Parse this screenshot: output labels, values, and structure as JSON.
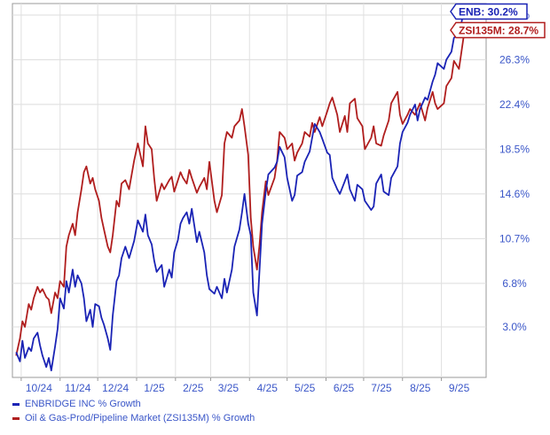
{
  "chart_data": {
    "type": "line",
    "y_unit": "%",
    "x_tick_labels": [
      "10/24",
      "11/24",
      "12/24",
      "1/25",
      "2/25",
      "3/25",
      "4/25",
      "5/25",
      "6/25",
      "7/25",
      "8/25",
      "9/25"
    ],
    "y_tick_labels": [
      "3.0%",
      "6.8%",
      "10.7%",
      "14.6%",
      "18.5%",
      "22.4%",
      "26.3%",
      "30.2%"
    ],
    "y_ticks": [
      3.0,
      6.8,
      10.7,
      14.6,
      18.5,
      22.4,
      26.3,
      30.2
    ],
    "ylim": [
      -1.4,
      31.2
    ],
    "grid": true,
    "legend_position": "bottom-left",
    "end_labels": [
      {
        "series": 0,
        "text": "ENB: 30.2%"
      },
      {
        "series": 1,
        "text": "ZSI135M: 28.7%"
      }
    ],
    "series": [
      {
        "name": "ENBRIDGE INC % Growth",
        "color": "#1a23b5",
        "points": [
          [
            "2024-09-27",
            0.8
          ],
          [
            "2024-09-30",
            0.0
          ],
          [
            "2024-10-02",
            1.8
          ],
          [
            "2024-10-04",
            0.3
          ],
          [
            "2024-10-07",
            1.2
          ],
          [
            "2024-10-09",
            0.9
          ],
          [
            "2024-10-11",
            2.0
          ],
          [
            "2024-10-14",
            2.5
          ],
          [
            "2024-10-16",
            1.4
          ],
          [
            "2024-10-18",
            0.5
          ],
          [
            "2024-10-21",
            -0.5
          ],
          [
            "2024-10-23",
            0.3
          ],
          [
            "2024-10-25",
            -0.8
          ],
          [
            "2024-10-28",
            1.3
          ],
          [
            "2024-10-30",
            2.8
          ],
          [
            "2024-11-01",
            5.5
          ],
          [
            "2024-11-04",
            4.6
          ],
          [
            "2024-11-06",
            7.0
          ],
          [
            "2024-11-08",
            6.0
          ],
          [
            "2024-11-11",
            8.0
          ],
          [
            "2024-11-13",
            6.5
          ],
          [
            "2024-11-15",
            7.5
          ],
          [
            "2024-11-18",
            6.8
          ],
          [
            "2024-11-20",
            5.5
          ],
          [
            "2024-11-22",
            3.5
          ],
          [
            "2024-11-25",
            4.5
          ],
          [
            "2024-11-27",
            3.0
          ],
          [
            "2024-11-29",
            5.0
          ],
          [
            "2024-12-02",
            4.8
          ],
          [
            "2024-12-04",
            3.8
          ],
          [
            "2024-12-06",
            3.2
          ],
          [
            "2024-12-09",
            2.0
          ],
          [
            "2024-12-11",
            1.0
          ],
          [
            "2024-12-13",
            4.0
          ],
          [
            "2024-12-16",
            7.0
          ],
          [
            "2024-12-18",
            7.5
          ],
          [
            "2024-12-20",
            9.0
          ],
          [
            "2024-12-23",
            10.0
          ],
          [
            "2024-12-26",
            9.0
          ],
          [
            "2024-12-30",
            10.5
          ],
          [
            "2025-01-02",
            12.3
          ],
          [
            "2025-01-06",
            11.3
          ],
          [
            "2025-01-08",
            12.8
          ],
          [
            "2025-01-10",
            11.0
          ],
          [
            "2025-01-13",
            10.2
          ],
          [
            "2025-01-15",
            8.8
          ],
          [
            "2025-01-17",
            7.8
          ],
          [
            "2025-01-21",
            8.4
          ],
          [
            "2025-01-23",
            6.5
          ],
          [
            "2025-01-27",
            8.0
          ],
          [
            "2025-01-29",
            7.3
          ],
          [
            "2025-01-31",
            9.5
          ],
          [
            "2025-02-03",
            10.6
          ],
          [
            "2025-02-05",
            12.0
          ],
          [
            "2025-02-07",
            12.5
          ],
          [
            "2025-02-10",
            13.0
          ],
          [
            "2025-02-12",
            12.0
          ],
          [
            "2025-02-14",
            13.3
          ],
          [
            "2025-02-18",
            10.4
          ],
          [
            "2025-02-20",
            11.3
          ],
          [
            "2025-02-24",
            9.5
          ],
          [
            "2025-02-26",
            7.5
          ],
          [
            "2025-02-28",
            6.3
          ],
          [
            "2025-03-04",
            5.9
          ],
          [
            "2025-03-06",
            6.5
          ],
          [
            "2025-03-10",
            5.5
          ],
          [
            "2025-03-12",
            7.2
          ],
          [
            "2025-03-14",
            6.0
          ],
          [
            "2025-03-18",
            8.0
          ],
          [
            "2025-03-20",
            10.0
          ],
          [
            "2025-03-24",
            11.5
          ],
          [
            "2025-03-26",
            13.0
          ],
          [
            "2025-03-28",
            14.6
          ],
          [
            "2025-03-31",
            12.0
          ],
          [
            "2025-04-02",
            11.0
          ],
          [
            "2025-04-04",
            6.0
          ],
          [
            "2025-04-07",
            4.0
          ],
          [
            "2025-04-09",
            8.0
          ],
          [
            "2025-04-11",
            12.0
          ],
          [
            "2025-04-14",
            14.8
          ],
          [
            "2025-04-16",
            16.3
          ],
          [
            "2025-04-21",
            16.9
          ],
          [
            "2025-04-23",
            17.4
          ],
          [
            "2025-04-25",
            18.7
          ],
          [
            "2025-04-29",
            17.8
          ],
          [
            "2025-05-01",
            16.0
          ],
          [
            "2025-05-05",
            14.0
          ],
          [
            "2025-05-07",
            14.5
          ],
          [
            "2025-05-09",
            16.2
          ],
          [
            "2025-05-13",
            16.5
          ],
          [
            "2025-05-15",
            17.4
          ],
          [
            "2025-05-19",
            18.3
          ],
          [
            "2025-05-21",
            19.5
          ],
          [
            "2025-05-23",
            20.7
          ],
          [
            "2025-05-27",
            20.0
          ],
          [
            "2025-05-29",
            19.4
          ],
          [
            "2025-06-02",
            18.2
          ],
          [
            "2025-06-04",
            18.0
          ],
          [
            "2025-06-06",
            16.0
          ],
          [
            "2025-06-10",
            15.0
          ],
          [
            "2025-06-12",
            14.6
          ],
          [
            "2025-06-16",
            15.7
          ],
          [
            "2025-06-18",
            16.3
          ],
          [
            "2025-06-20",
            15.0
          ],
          [
            "2025-06-24",
            14.0
          ],
          [
            "2025-06-26",
            15.4
          ],
          [
            "2025-06-30",
            15.0
          ],
          [
            "2025-07-02",
            14.0
          ],
          [
            "2025-07-07",
            13.2
          ],
          [
            "2025-07-09",
            13.5
          ],
          [
            "2025-07-11",
            15.5
          ],
          [
            "2025-07-15",
            16.3
          ],
          [
            "2025-07-17",
            14.8
          ],
          [
            "2025-07-21",
            14.5
          ],
          [
            "2025-07-23",
            16.0
          ],
          [
            "2025-07-28",
            17.0
          ],
          [
            "2025-07-30",
            19.0
          ],
          [
            "2025-08-01",
            20.0
          ],
          [
            "2025-08-05",
            20.8
          ],
          [
            "2025-08-07",
            21.5
          ],
          [
            "2025-08-11",
            22.4
          ],
          [
            "2025-08-13",
            21.0
          ],
          [
            "2025-08-15",
            22.0
          ],
          [
            "2025-08-19",
            23.0
          ],
          [
            "2025-08-21",
            22.8
          ],
          [
            "2025-08-25",
            24.4
          ],
          [
            "2025-08-27",
            25.0
          ],
          [
            "2025-08-29",
            26.0
          ],
          [
            "2025-09-03",
            25.5
          ],
          [
            "2025-09-05",
            26.3
          ],
          [
            "2025-09-09",
            27.0
          ],
          [
            "2025-09-11",
            28.2
          ],
          [
            "2025-09-15",
            28.7
          ],
          [
            "2025-09-17",
            29.5
          ],
          [
            "2025-09-19",
            30.8
          ],
          [
            "2025-09-22",
            30.2
          ]
        ]
      },
      {
        "name": "Oil & Gas-Prod/Pipeline Market (ZSI135M) % Growth",
        "color": "#b01e1e",
        "points": [
          [
            "2024-09-27",
            0.5
          ],
          [
            "2024-09-30",
            2.0
          ],
          [
            "2024-10-02",
            3.5
          ],
          [
            "2024-10-04",
            3.0
          ],
          [
            "2024-10-07",
            5.0
          ],
          [
            "2024-10-09",
            4.5
          ],
          [
            "2024-10-11",
            5.5
          ],
          [
            "2024-10-14",
            6.5
          ],
          [
            "2024-10-16",
            6.0
          ],
          [
            "2024-10-18",
            6.3
          ],
          [
            "2024-10-21",
            5.6
          ],
          [
            "2024-10-23",
            5.4
          ],
          [
            "2024-10-25",
            4.2
          ],
          [
            "2024-10-28",
            6.0
          ],
          [
            "2024-10-30",
            5.5
          ],
          [
            "2024-11-01",
            7.0
          ],
          [
            "2024-11-04",
            6.5
          ],
          [
            "2024-11-06",
            10.0
          ],
          [
            "2024-11-08",
            11.0
          ],
          [
            "2024-11-11",
            12.0
          ],
          [
            "2024-11-13",
            11.0
          ],
          [
            "2024-11-15",
            13.0
          ],
          [
            "2024-11-18",
            15.0
          ],
          [
            "2024-11-20",
            16.5
          ],
          [
            "2024-11-22",
            17.0
          ],
          [
            "2024-11-25",
            15.5
          ],
          [
            "2024-11-27",
            16.0
          ],
          [
            "2024-11-29",
            15.0
          ],
          [
            "2024-12-02",
            14.0
          ],
          [
            "2024-12-04",
            12.5
          ],
          [
            "2024-12-06",
            11.5
          ],
          [
            "2024-12-09",
            10.0
          ],
          [
            "2024-12-11",
            9.5
          ],
          [
            "2024-12-13",
            11.0
          ],
          [
            "2024-12-16",
            14.0
          ],
          [
            "2024-12-18",
            13.5
          ],
          [
            "2024-12-20",
            15.5
          ],
          [
            "2024-12-23",
            15.8
          ],
          [
            "2024-12-26",
            15.0
          ],
          [
            "2024-12-30",
            17.5
          ],
          [
            "2025-01-02",
            19.0
          ],
          [
            "2025-01-06",
            17.0
          ],
          [
            "2025-01-08",
            20.5
          ],
          [
            "2025-01-10",
            19.0
          ],
          [
            "2025-01-13",
            18.5
          ],
          [
            "2025-01-15",
            16.0
          ],
          [
            "2025-01-17",
            14.0
          ],
          [
            "2025-01-21",
            15.5
          ],
          [
            "2025-01-23",
            15.0
          ],
          [
            "2025-01-27",
            15.8
          ],
          [
            "2025-01-29",
            16.1
          ],
          [
            "2025-01-31",
            14.8
          ],
          [
            "2025-02-03",
            15.8
          ],
          [
            "2025-02-05",
            16.5
          ],
          [
            "2025-02-07",
            16.0
          ],
          [
            "2025-02-10",
            15.5
          ],
          [
            "2025-02-12",
            16.7
          ],
          [
            "2025-02-14",
            16.0
          ],
          [
            "2025-02-18",
            14.7
          ],
          [
            "2025-02-20",
            15.2
          ],
          [
            "2025-02-24",
            16.0
          ],
          [
            "2025-02-26",
            15.0
          ],
          [
            "2025-02-28",
            17.4
          ],
          [
            "2025-03-04",
            14.0
          ],
          [
            "2025-03-06",
            13.0
          ],
          [
            "2025-03-10",
            14.5
          ],
          [
            "2025-03-12",
            19.0
          ],
          [
            "2025-03-14",
            20.0
          ],
          [
            "2025-03-18",
            19.5
          ],
          [
            "2025-03-20",
            20.5
          ],
          [
            "2025-03-24",
            21.0
          ],
          [
            "2025-03-26",
            22.0
          ],
          [
            "2025-03-28",
            20.5
          ],
          [
            "2025-03-31",
            18.0
          ],
          [
            "2025-04-02",
            12.5
          ],
          [
            "2025-04-04",
            10.0
          ],
          [
            "2025-04-07",
            8.0
          ],
          [
            "2025-04-09",
            10.2
          ],
          [
            "2025-04-11",
            13.0
          ],
          [
            "2025-04-14",
            15.7
          ],
          [
            "2025-04-16",
            14.5
          ],
          [
            "2025-04-21",
            16.0
          ],
          [
            "2025-04-23",
            17.5
          ],
          [
            "2025-04-25",
            20.0
          ],
          [
            "2025-04-29",
            19.5
          ],
          [
            "2025-05-01",
            18.5
          ],
          [
            "2025-05-05",
            19.0
          ],
          [
            "2025-05-07",
            17.5
          ],
          [
            "2025-05-09",
            18.2
          ],
          [
            "2025-05-13",
            19.0
          ],
          [
            "2025-05-15",
            20.0
          ],
          [
            "2025-05-19",
            19.6
          ],
          [
            "2025-05-21",
            20.8
          ],
          [
            "2025-05-23",
            20.0
          ],
          [
            "2025-05-27",
            21.3
          ],
          [
            "2025-05-29",
            20.5
          ],
          [
            "2025-06-02",
            21.8
          ],
          [
            "2025-06-04",
            22.5
          ],
          [
            "2025-06-06",
            23.0
          ],
          [
            "2025-06-10",
            21.5
          ],
          [
            "2025-06-12",
            20.0
          ],
          [
            "2025-06-16",
            21.4
          ],
          [
            "2025-06-18",
            20.0
          ],
          [
            "2025-06-20",
            22.5
          ],
          [
            "2025-06-24",
            22.9
          ],
          [
            "2025-06-26",
            21.2
          ],
          [
            "2025-06-30",
            20.5
          ],
          [
            "2025-07-02",
            18.5
          ],
          [
            "2025-07-07",
            19.5
          ],
          [
            "2025-07-09",
            20.5
          ],
          [
            "2025-07-11",
            19.0
          ],
          [
            "2025-07-15",
            18.8
          ],
          [
            "2025-07-17",
            19.7
          ],
          [
            "2025-07-21",
            21.0
          ],
          [
            "2025-07-23",
            22.5
          ],
          [
            "2025-07-28",
            23.5
          ],
          [
            "2025-07-30",
            21.5
          ],
          [
            "2025-08-01",
            20.7
          ],
          [
            "2025-08-05",
            21.5
          ],
          [
            "2025-08-07",
            22.0
          ],
          [
            "2025-08-11",
            21.5
          ],
          [
            "2025-08-13",
            22.0
          ],
          [
            "2025-08-15",
            22.5
          ],
          [
            "2025-08-19",
            21.0
          ],
          [
            "2025-08-21",
            22.1
          ],
          [
            "2025-08-25",
            23.5
          ],
          [
            "2025-08-27",
            22.5
          ],
          [
            "2025-08-29",
            22.0
          ],
          [
            "2025-09-03",
            22.5
          ],
          [
            "2025-09-05",
            24.0
          ],
          [
            "2025-09-09",
            24.7
          ],
          [
            "2025-09-11",
            26.2
          ],
          [
            "2025-09-15",
            25.5
          ],
          [
            "2025-09-17",
            27.0
          ],
          [
            "2025-09-19",
            28.5
          ],
          [
            "2025-09-22",
            28.7
          ]
        ]
      }
    ]
  }
}
